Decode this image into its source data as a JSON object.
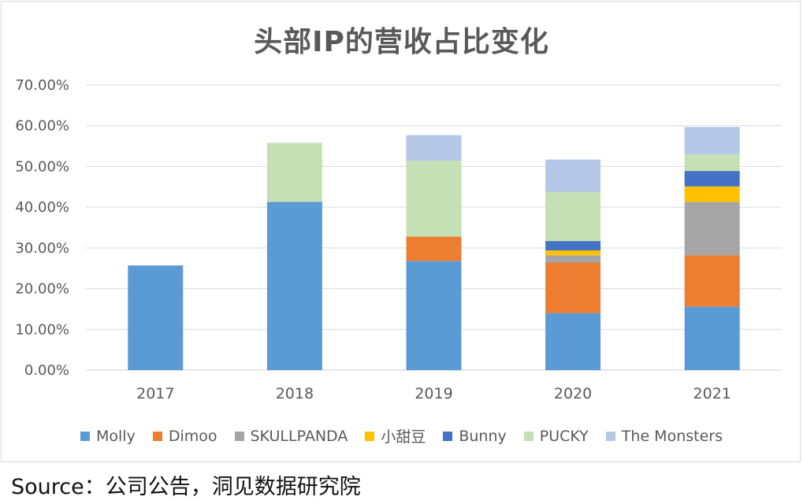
{
  "chart_data": {
    "type": "bar",
    "stacked": true,
    "title": "头部IP的营收占比变化",
    "categories": [
      "2017",
      "2018",
      "2019",
      "2020",
      "2021"
    ],
    "ylim": [
      0,
      70
    ],
    "ytick_labels": [
      "0.00%",
      "10.00%",
      "20.00%",
      "30.00%",
      "40.00%",
      "50.00%",
      "60.00%",
      "70.00%"
    ],
    "grid": true,
    "legend_position": "bottom",
    "series": [
      {
        "name": "Molly",
        "color": "#5b9bd5",
        "values": [
          25.7,
          41.3,
          26.8,
          14.0,
          15.6
        ]
      },
      {
        "name": "Dimoo",
        "color": "#ed7d31",
        "values": [
          0,
          0,
          6.0,
          12.4,
          12.6
        ]
      },
      {
        "name": "SKULLPANDA",
        "color": "#a5a5a5",
        "values": [
          0,
          0,
          0,
          1.8,
          13.1
        ]
      },
      {
        "name": "小甜豆",
        "color": "#ffc000",
        "values": [
          0,
          0,
          0,
          1.2,
          3.8
        ]
      },
      {
        "name": "Bunny",
        "color": "#4472c4",
        "values": [
          0,
          0,
          0,
          2.3,
          3.8
        ]
      },
      {
        "name": "PUCKY",
        "color": "#c5e0b4",
        "values": [
          0,
          14.5,
          18.6,
          12.1,
          4.1
        ]
      },
      {
        "name": "The Monsters",
        "color": "#b4c7e7",
        "values": [
          0,
          0,
          6.3,
          7.9,
          6.7
        ]
      }
    ]
  },
  "source_text": "Source：公司公告，洞见数据研究院"
}
